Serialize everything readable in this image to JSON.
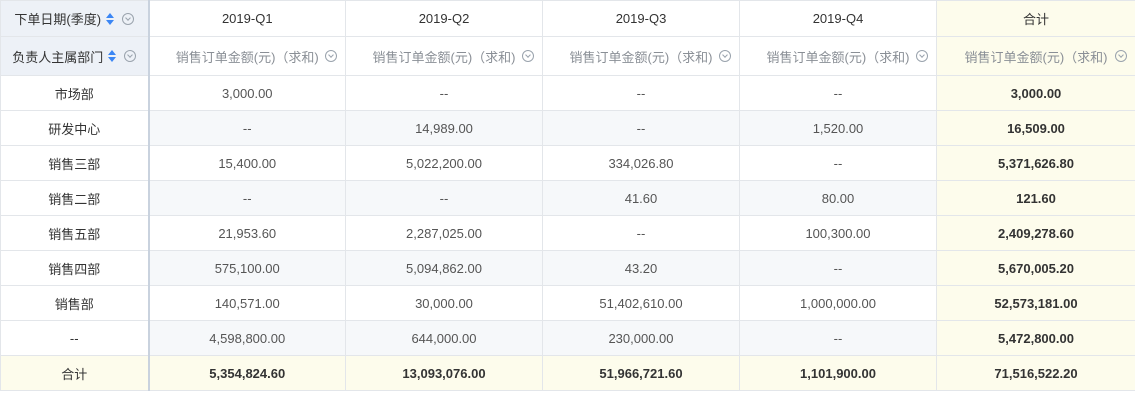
{
  "header": {
    "row_dim_label": "下单日期(季度)",
    "col_dim_label": "负责人主属部门",
    "quarters": [
      "2019-Q1",
      "2019-Q2",
      "2019-Q3",
      "2019-Q4"
    ],
    "total_label": "合计",
    "measure_label": "销售订单金额(元)（求和)"
  },
  "rows": [
    {
      "dept": "市场部",
      "q1": "3,000.00",
      "q2": "--",
      "q3": "--",
      "q4": "--",
      "total": "3,000.00"
    },
    {
      "dept": "研发中心",
      "q1": "--",
      "q2": "14,989.00",
      "q3": "--",
      "q4": "1,520.00",
      "total": "16,509.00"
    },
    {
      "dept": "销售三部",
      "q1": "15,400.00",
      "q2": "5,022,200.00",
      "q3": "334,026.80",
      "q4": "--",
      "total": "5,371,626.80"
    },
    {
      "dept": "销售二部",
      "q1": "--",
      "q2": "--",
      "q3": "41.60",
      "q4": "80.00",
      "total": "121.60"
    },
    {
      "dept": "销售五部",
      "q1": "21,953.60",
      "q2": "2,287,025.00",
      "q3": "--",
      "q4": "100,300.00",
      "total": "2,409,278.60"
    },
    {
      "dept": "销售四部",
      "q1": "575,100.00",
      "q2": "5,094,862.00",
      "q3": "43.20",
      "q4": "--",
      "total": "5,670,005.20"
    },
    {
      "dept": "销售部",
      "q1": "140,571.00",
      "q2": "30,000.00",
      "q3": "51,402,610.00",
      "q4": "1,000,000.00",
      "total": "52,573,181.00"
    },
    {
      "dept": "--",
      "q1": "4,598,800.00",
      "q2": "644,000.00",
      "q3": "230,000.00",
      "q4": "--",
      "total": "5,472,800.00"
    }
  ],
  "totals": {
    "label": "合计",
    "q1": "5,354,824.60",
    "q2": "13,093,076.00",
    "q3": "51,966,721.60",
    "q4": "1,101,900.00",
    "total": "71,516,522.20"
  },
  "colors": {
    "accent": "#3b86f4",
    "header_bg": "#edf1f7",
    "total_bg": "#fdfcec"
  },
  "icons": {
    "sort": "sort-icon",
    "dropdown": "chevron-down-circle-icon"
  }
}
